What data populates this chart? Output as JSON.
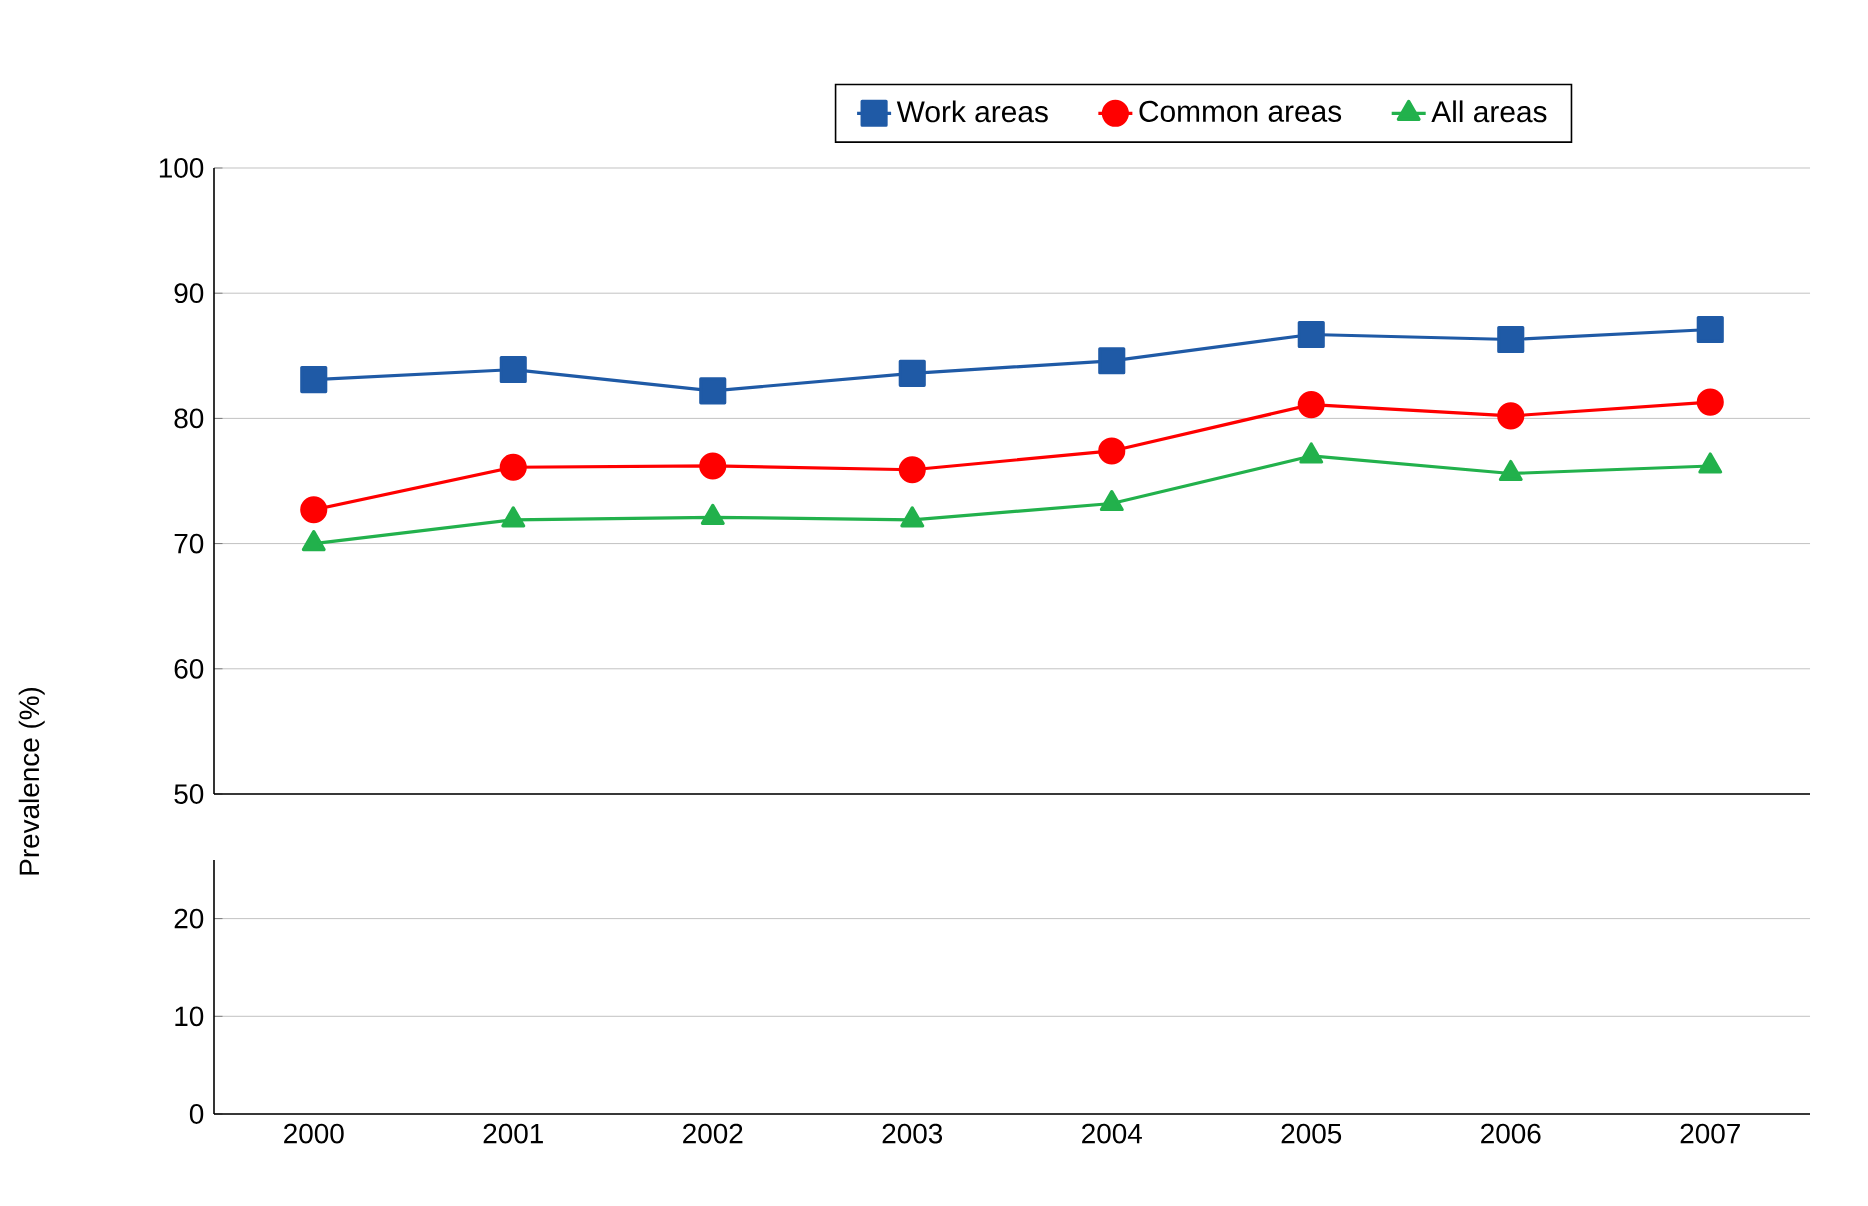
{
  "chart_data": [
    {
      "type": "line",
      "ylabel": "Prevalence (%)",
      "categories": [
        "2000",
        "2001",
        "2002",
        "2003",
        "2004",
        "2005",
        "2006",
        "2007"
      ],
      "ylim": [
        50,
        100
      ],
      "yticks": [
        50,
        60,
        70,
        80,
        90,
        100
      ],
      "grid": "y",
      "legend": "top",
      "tick_labels": "y",
      "line_style": "solid",
      "series": [
        {
          "name": "Work areas",
          "color": "#1f5aa6",
          "marker": "square",
          "values": [
            83.1,
            83.9,
            82.2,
            83.6,
            84.6,
            86.7,
            86.3,
            87.1
          ]
        },
        {
          "name": "Common areas",
          "color": "#ff0000",
          "marker": "circle",
          "values": [
            72.7,
            76.1,
            76.2,
            75.9,
            77.4,
            81.1,
            80.2,
            81.3
          ]
        },
        {
          "name": "All areas",
          "color": "#22b14c",
          "marker": "triangle",
          "values": [
            70.0,
            71.9,
            72.1,
            71.9,
            73.2,
            77.0,
            75.6,
            76.2
          ]
        }
      ]
    },
    {
      "type": "line",
      "categories": [
        "2000",
        "2001",
        "2002",
        "2003",
        "2004",
        "2005",
        "2006",
        "2007"
      ],
      "ylim": [
        0,
        26
      ],
      "yticks": [
        0,
        10,
        20
      ],
      "grid": "y"
    }
  ]
}
